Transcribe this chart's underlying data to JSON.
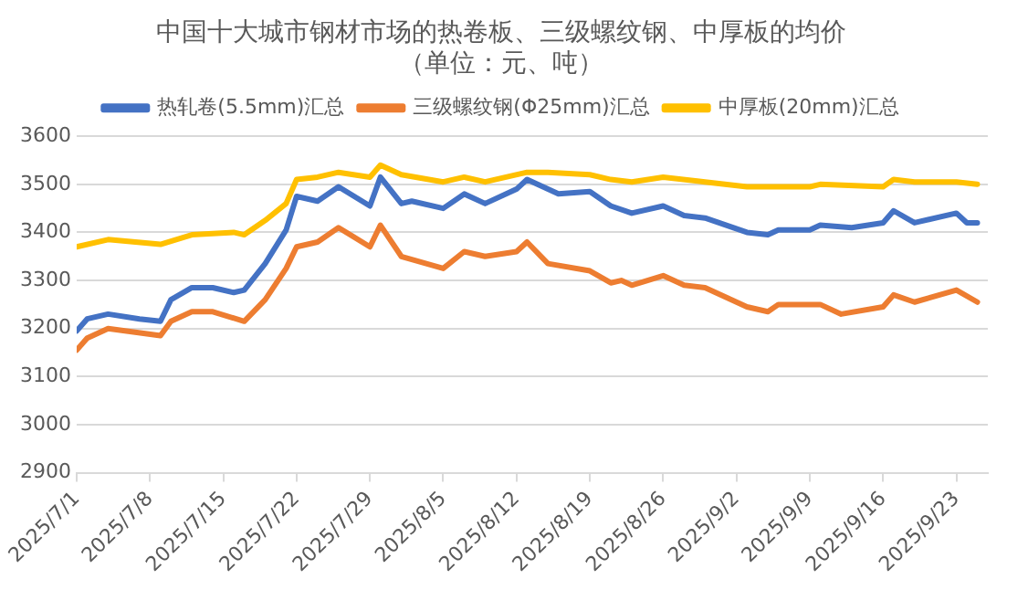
{
  "chart_data": {
    "type": "line",
    "title": "中国十大城市钢材市场的热卷板、三级螺纹钢、中厚板的均价",
    "subtitle": "（单位：元、吨）",
    "xlim": [
      "2025-07-01",
      "2025-09-26"
    ],
    "xticks": [
      {
        "value": "2025-07-01",
        "label": "2025/7/1"
      },
      {
        "value": "2025-07-08",
        "label": "2025/7/8"
      },
      {
        "value": "2025-07-15",
        "label": "2025/7/15"
      },
      {
        "value": "2025-07-22",
        "label": "2025/7/22"
      },
      {
        "value": "2025-07-29",
        "label": "2025/7/29"
      },
      {
        "value": "2025-08-05",
        "label": "2025/8/5"
      },
      {
        "value": "2025-08-12",
        "label": "2025/8/12"
      },
      {
        "value": "2025-08-19",
        "label": "2025/8/19"
      },
      {
        "value": "2025-08-26",
        "label": "2025/8/26"
      },
      {
        "value": "2025-09-02",
        "label": "2025/9/2"
      },
      {
        "value": "2025-09-09",
        "label": "2025/9/9"
      },
      {
        "value": "2025-09-16",
        "label": "2025/9/16"
      },
      {
        "value": "2025-09-23",
        "label": "2025/9/23"
      }
    ],
    "ylim": [
      2900,
      3600
    ],
    "yticks": [
      2900,
      3000,
      3100,
      3200,
      3300,
      3400,
      3500,
      3600
    ],
    "grid": "y",
    "legend": "top",
    "marker": "none",
    "line_style": "solid",
    "series": [
      {
        "name": "热轧卷(5.5mm)汇总",
        "color": "#4472c4",
        "x": [
          "2025-07-01",
          "2025-07-02",
          "2025-07-04",
          "2025-07-07",
          "2025-07-09",
          "2025-07-10",
          "2025-07-12",
          "2025-07-14",
          "2025-07-16",
          "2025-07-17",
          "2025-07-19",
          "2025-07-21",
          "2025-07-22",
          "2025-07-24",
          "2025-07-26",
          "2025-07-29",
          "2025-07-30",
          "2025-08-01",
          "2025-08-02",
          "2025-08-05",
          "2025-08-07",
          "2025-08-09",
          "2025-08-12",
          "2025-08-13",
          "2025-08-16",
          "2025-08-19",
          "2025-08-21",
          "2025-08-23",
          "2025-08-26",
          "2025-08-28",
          "2025-08-30",
          "2025-09-03",
          "2025-09-05",
          "2025-09-06",
          "2025-09-09",
          "2025-09-10",
          "2025-09-13",
          "2025-09-16",
          "2025-09-17",
          "2025-09-19",
          "2025-09-23",
          "2025-09-24",
          "2025-09-25"
        ],
        "values": [
          3195,
          3220,
          3230,
          3220,
          3215,
          3260,
          3285,
          3285,
          3275,
          3280,
          3335,
          3405,
          3475,
          3465,
          3495,
          3455,
          3515,
          3460,
          3465,
          3450,
          3480,
          3460,
          3490,
          3510,
          3480,
          3485,
          3455,
          3440,
          3455,
          3435,
          3430,
          3400,
          3395,
          3405,
          3405,
          3415,
          3410,
          3420,
          3445,
          3420,
          3440,
          3420,
          3420
        ]
      },
      {
        "name": "三级螺纹钢(Φ25mm)汇总",
        "color": "#ed7d31",
        "x": [
          "2025-07-01",
          "2025-07-02",
          "2025-07-04",
          "2025-07-09",
          "2025-07-10",
          "2025-07-12",
          "2025-07-14",
          "2025-07-17",
          "2025-07-19",
          "2025-07-21",
          "2025-07-22",
          "2025-07-24",
          "2025-07-26",
          "2025-07-29",
          "2025-07-30",
          "2025-08-01",
          "2025-08-05",
          "2025-08-07",
          "2025-08-09",
          "2025-08-12",
          "2025-08-13",
          "2025-08-15",
          "2025-08-19",
          "2025-08-21",
          "2025-08-22",
          "2025-08-23",
          "2025-08-26",
          "2025-08-28",
          "2025-08-30",
          "2025-09-03",
          "2025-09-05",
          "2025-09-06",
          "2025-09-10",
          "2025-09-12",
          "2025-09-16",
          "2025-09-17",
          "2025-09-19",
          "2025-09-23",
          "2025-09-25"
        ],
        "values": [
          3155,
          3180,
          3200,
          3185,
          3215,
          3235,
          3235,
          3215,
          3260,
          3325,
          3370,
          3380,
          3410,
          3370,
          3415,
          3350,
          3325,
          3360,
          3350,
          3360,
          3380,
          3335,
          3320,
          3295,
          3300,
          3290,
          3310,
          3290,
          3285,
          3245,
          3235,
          3250,
          3250,
          3230,
          3245,
          3270,
          3255,
          3280,
          3255
        ]
      },
      {
        "name": "中厚板(20mm)汇总",
        "color": "#ffc000",
        "x": [
          "2025-07-01",
          "2025-07-04",
          "2025-07-09",
          "2025-07-12",
          "2025-07-16",
          "2025-07-17",
          "2025-07-19",
          "2025-07-21",
          "2025-07-22",
          "2025-07-24",
          "2025-07-26",
          "2025-07-29",
          "2025-07-30",
          "2025-08-01",
          "2025-08-05",
          "2025-08-07",
          "2025-08-09",
          "2025-08-13",
          "2025-08-15",
          "2025-08-19",
          "2025-08-21",
          "2025-08-23",
          "2025-08-26",
          "2025-08-30",
          "2025-09-03",
          "2025-09-09",
          "2025-09-10",
          "2025-09-16",
          "2025-09-17",
          "2025-09-19",
          "2025-09-23",
          "2025-09-25"
        ],
        "values": [
          3370,
          3385,
          3375,
          3395,
          3400,
          3395,
          3425,
          3460,
          3510,
          3515,
          3525,
          3515,
          3540,
          3520,
          3505,
          3515,
          3505,
          3525,
          3525,
          3520,
          3510,
          3505,
          3515,
          3505,
          3495,
          3495,
          3500,
          3495,
          3510,
          3505,
          3505,
          3500
        ]
      }
    ]
  }
}
